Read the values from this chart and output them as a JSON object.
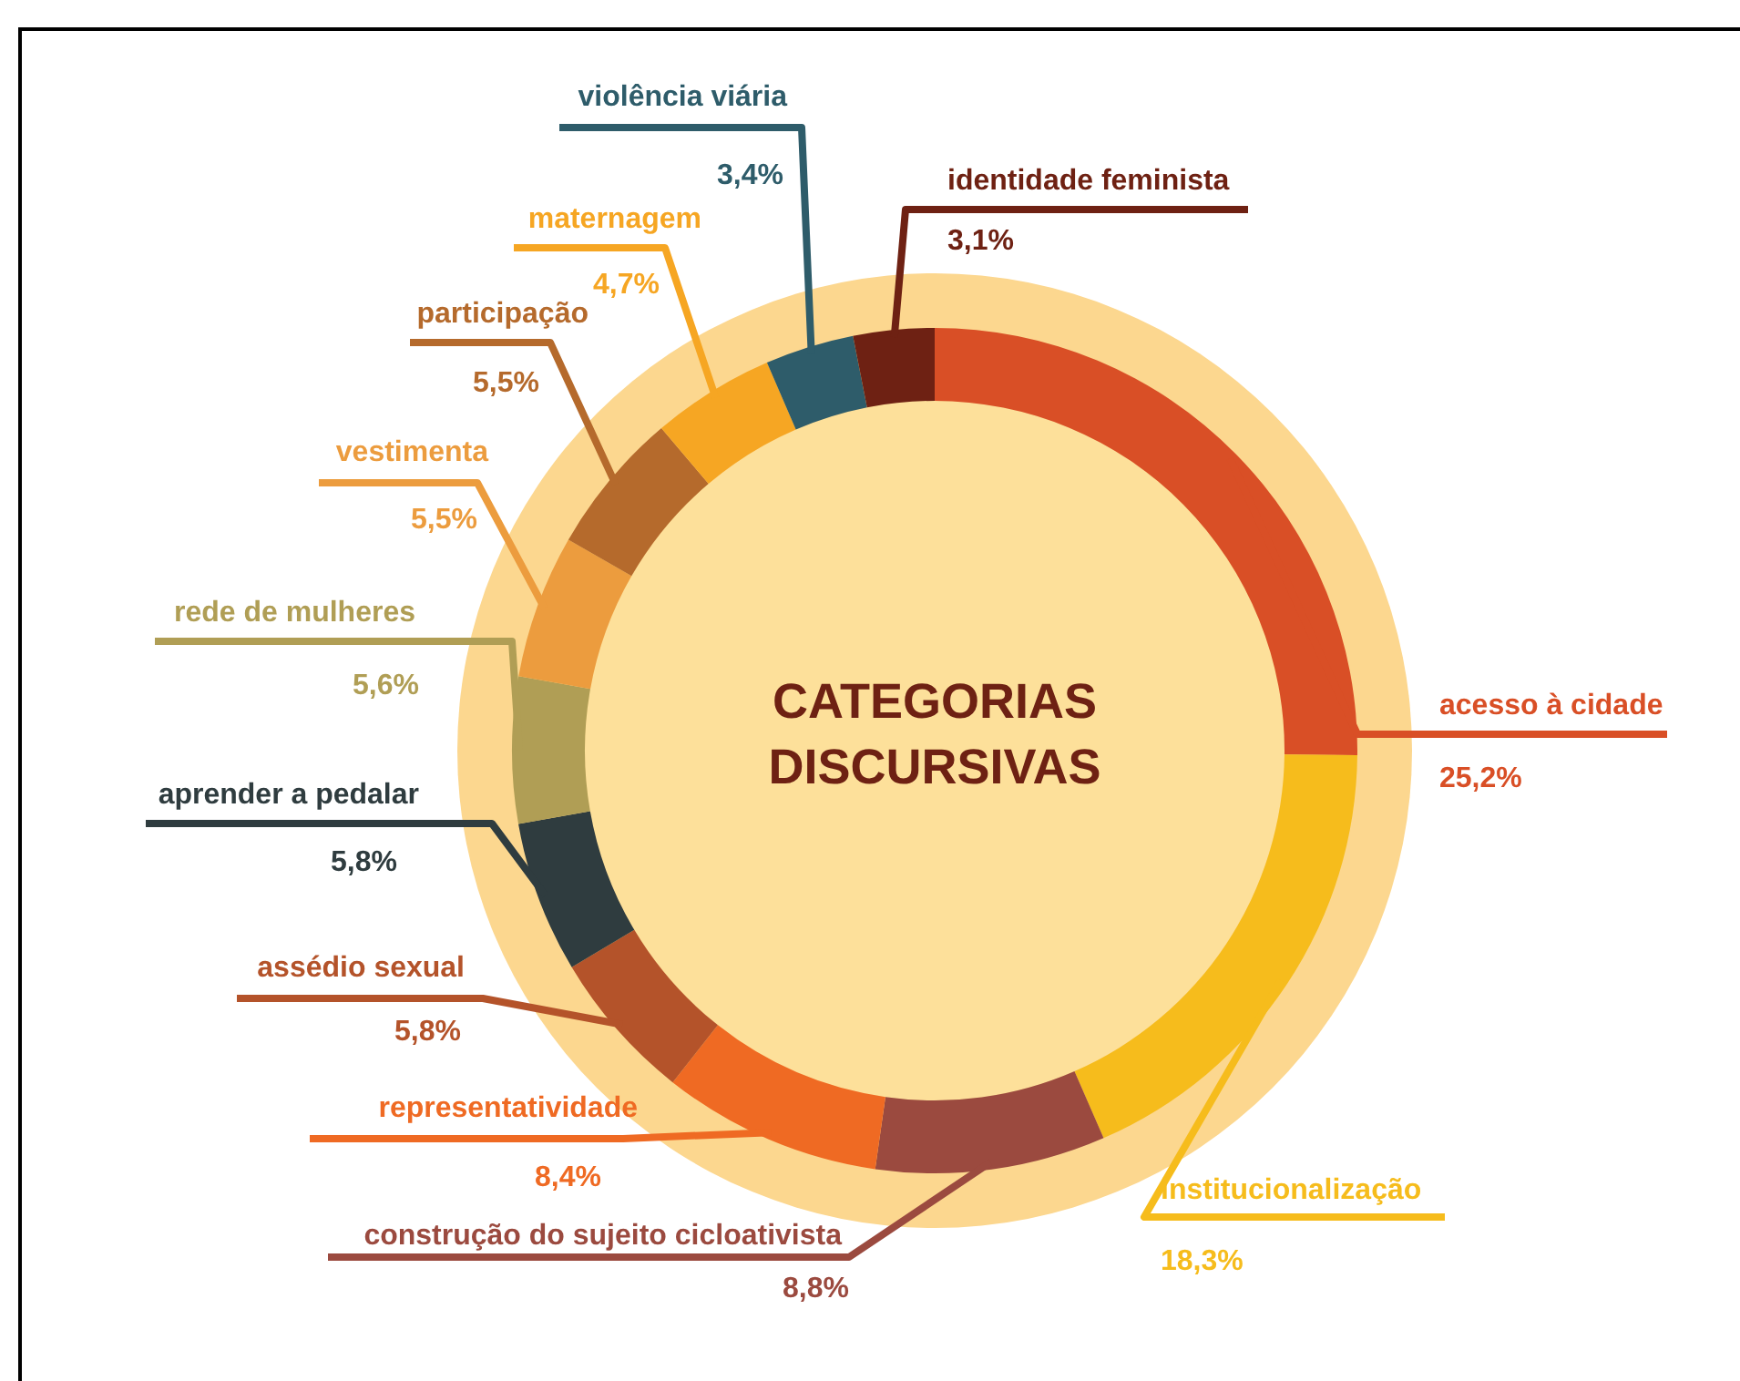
{
  "chart_data": {
    "type": "donut",
    "title": "CATEGORIAS DISCURSIVAS",
    "categories": [
      "acesso à cidade",
      "institucionalização",
      "construção do sujeito cicloativista",
      "representatividade",
      "assédio sexual",
      "aprender a pedalar",
      "rede de mulheres",
      "vestimenta",
      "participação",
      "maternagem",
      "violência viária",
      "identidade feminista"
    ],
    "values": [
      25.2,
      18.3,
      8.8,
      8.4,
      5.8,
      5.8,
      5.6,
      5.5,
      5.5,
      4.7,
      3.4,
      3.1
    ],
    "value_labels": [
      "25,2%",
      "18,3%",
      "8,8%",
      "8,4%",
      "5,8%",
      "5,8%",
      "5,6%",
      "5,5%",
      "5,5%",
      "4,7%",
      "3,4%",
      "3,1%"
    ],
    "colors": [
      "#d94f26",
      "#f6bc1c",
      "#9b4a3f",
      "#ef6a23",
      "#b4532a",
      "#2f3c3f",
      "#b09e55",
      "#ec9c3e",
      "#b56a2c",
      "#f6a623",
      "#2e5c6a",
      "#6e2113"
    ]
  }
}
